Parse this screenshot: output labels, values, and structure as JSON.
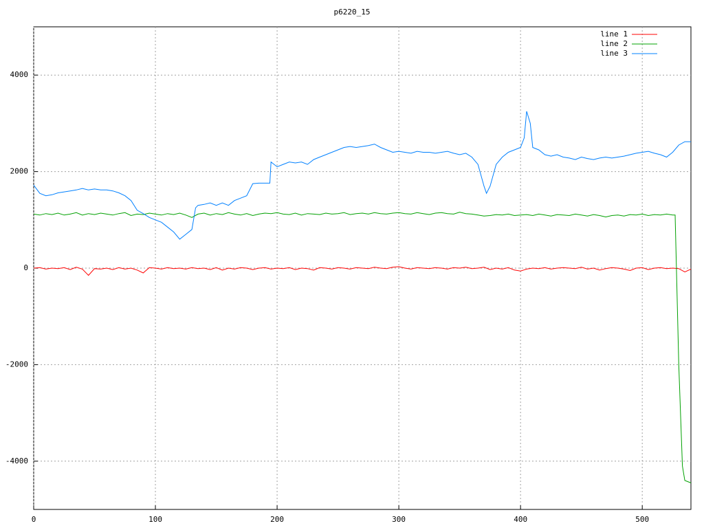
{
  "chart_data": {
    "type": "line",
    "title": "p6220_15",
    "xlim": [
      0,
      540
    ],
    "ylim": [
      -5000,
      5000
    ],
    "xticks": [
      0,
      100,
      200,
      300,
      400,
      500
    ],
    "yticks": [
      -4000,
      -2000,
      0,
      2000,
      4000
    ],
    "grid": true,
    "legend": "upper right",
    "series": [
      {
        "name": "line 1",
        "color": "#ff0000",
        "x": [
          0,
          5,
          10,
          15,
          20,
          25,
          30,
          35,
          40,
          45,
          50,
          55,
          60,
          65,
          70,
          75,
          80,
          85,
          90,
          95,
          100,
          105,
          110,
          115,
          120,
          125,
          130,
          135,
          140,
          145,
          150,
          155,
          160,
          165,
          170,
          175,
          180,
          185,
          190,
          195,
          200,
          205,
          210,
          215,
          220,
          225,
          230,
          235,
          240,
          245,
          250,
          255,
          260,
          265,
          270,
          275,
          280,
          285,
          290,
          295,
          300,
          305,
          310,
          315,
          320,
          325,
          330,
          335,
          340,
          345,
          350,
          355,
          360,
          365,
          370,
          375,
          380,
          385,
          390,
          395,
          400,
          405,
          410,
          415,
          420,
          425,
          430,
          435,
          440,
          445,
          450,
          455,
          460,
          465,
          470,
          475,
          480,
          485,
          490,
          495,
          500,
          505,
          510,
          515,
          520,
          525,
          530,
          535,
          540
        ],
        "values": [
          0,
          10,
          -20,
          0,
          -10,
          10,
          -30,
          20,
          -20,
          -150,
          -10,
          -20,
          0,
          -30,
          10,
          -20,
          0,
          -40,
          -100,
          10,
          0,
          -20,
          10,
          -10,
          0,
          -20,
          10,
          -10,
          0,
          -30,
          10,
          -40,
          0,
          -20,
          10,
          0,
          -30,
          0,
          10,
          -20,
          0,
          -10,
          10,
          -30,
          0,
          -10,
          -40,
          10,
          0,
          -20,
          10,
          0,
          -20,
          10,
          0,
          -10,
          20,
          0,
          -10,
          20,
          30,
          0,
          -20,
          10,
          0,
          -10,
          10,
          0,
          -20,
          10,
          0,
          20,
          -10,
          0,
          20,
          -30,
          0,
          -20,
          10,
          -40,
          -60,
          -20,
          0,
          -10,
          10,
          -20,
          0,
          10,
          0,
          -10,
          20,
          -20,
          0,
          -40,
          -10,
          10,
          0,
          -20,
          -50,
          0,
          10,
          -30,
          0,
          10,
          -10,
          0,
          -10,
          -80,
          -20
        ]
      },
      {
        "name": "line 2",
        "color": "#00a000",
        "x": [
          0,
          5,
          10,
          15,
          20,
          25,
          30,
          35,
          40,
          45,
          50,
          55,
          60,
          65,
          70,
          75,
          80,
          85,
          90,
          95,
          100,
          105,
          110,
          115,
          120,
          125,
          130,
          135,
          140,
          145,
          150,
          155,
          160,
          165,
          170,
          175,
          180,
          185,
          190,
          195,
          200,
          205,
          210,
          215,
          220,
          225,
          230,
          235,
          240,
          245,
          250,
          255,
          260,
          265,
          270,
          275,
          280,
          285,
          290,
          295,
          300,
          305,
          310,
          315,
          320,
          325,
          330,
          335,
          340,
          345,
          350,
          355,
          360,
          365,
          370,
          375,
          380,
          385,
          390,
          395,
          400,
          405,
          410,
          415,
          420,
          425,
          430,
          435,
          440,
          445,
          450,
          455,
          460,
          465,
          470,
          475,
          480,
          485,
          490,
          495,
          500,
          505,
          510,
          515,
          520,
          525,
          527,
          530,
          533,
          535,
          540
        ],
        "values": [
          1120,
          1100,
          1130,
          1110,
          1140,
          1100,
          1120,
          1150,
          1100,
          1130,
          1110,
          1140,
          1120,
          1100,
          1130,
          1150,
          1090,
          1120,
          1110,
          1140,
          1120,
          1100,
          1130,
          1110,
          1140,
          1100,
          1050,
          1120,
          1140,
          1100,
          1130,
          1110,
          1150,
          1120,
          1100,
          1130,
          1090,
          1120,
          1140,
          1130,
          1150,
          1120,
          1110,
          1140,
          1100,
          1130,
          1120,
          1110,
          1140,
          1120,
          1130,
          1150,
          1110,
          1130,
          1140,
          1120,
          1150,
          1130,
          1120,
          1140,
          1150,
          1130,
          1120,
          1150,
          1130,
          1110,
          1140,
          1150,
          1130,
          1120,
          1160,
          1130,
          1120,
          1100,
          1080,
          1090,
          1110,
          1100,
          1120,
          1090,
          1100,
          1110,
          1090,
          1120,
          1100,
          1080,
          1110,
          1100,
          1090,
          1120,
          1100,
          1080,
          1110,
          1090,
          1060,
          1090,
          1100,
          1080,
          1110,
          1100,
          1120,
          1090,
          1110,
          1100,
          1120,
          1100,
          1100,
          -2000,
          -4100,
          -4400,
          -4450
        ]
      },
      {
        "name": "line 3",
        "color": "#0080ff",
        "x": [
          0,
          5,
          10,
          15,
          20,
          25,
          30,
          35,
          40,
          45,
          50,
          55,
          60,
          65,
          70,
          75,
          80,
          85,
          90,
          95,
          100,
          105,
          110,
          115,
          120,
          125,
          130,
          133,
          135,
          140,
          145,
          150,
          155,
          160,
          165,
          170,
          175,
          180,
          185,
          190,
          194,
          195,
          200,
          205,
          210,
          215,
          220,
          225,
          230,
          235,
          240,
          245,
          250,
          255,
          260,
          265,
          270,
          275,
          280,
          285,
          290,
          295,
          300,
          305,
          310,
          315,
          320,
          325,
          330,
          335,
          340,
          345,
          350,
          355,
          360,
          365,
          370,
          372,
          375,
          380,
          385,
          390,
          395,
          400,
          403,
          405,
          408,
          410,
          415,
          420,
          425,
          430,
          435,
          440,
          445,
          450,
          455,
          460,
          465,
          470,
          475,
          480,
          485,
          490,
          495,
          500,
          505,
          510,
          515,
          520,
          525,
          530,
          535,
          540
        ],
        "values": [
          1720,
          1550,
          1500,
          1520,
          1560,
          1580,
          1600,
          1620,
          1650,
          1620,
          1640,
          1620,
          1620,
          1600,
          1560,
          1500,
          1400,
          1200,
          1130,
          1050,
          1000,
          950,
          850,
          750,
          600,
          700,
          800,
          1250,
          1300,
          1320,
          1350,
          1300,
          1350,
          1300,
          1400,
          1450,
          1500,
          1750,
          1760,
          1760,
          1760,
          2200,
          2100,
          2150,
          2200,
          2180,
          2200,
          2150,
          2250,
          2300,
          2350,
          2400,
          2450,
          2500,
          2520,
          2500,
          2520,
          2540,
          2570,
          2500,
          2450,
          2400,
          2420,
          2400,
          2380,
          2420,
          2400,
          2400,
          2380,
          2400,
          2420,
          2380,
          2350,
          2380,
          2300,
          2150,
          1700,
          1550,
          1700,
          2150,
          2300,
          2400,
          2450,
          2500,
          2700,
          3250,
          3000,
          2500,
          2450,
          2350,
          2320,
          2350,
          2300,
          2280,
          2250,
          2300,
          2270,
          2250,
          2280,
          2300,
          2280,
          2300,
          2320,
          2350,
          2380,
          2400,
          2420,
          2380,
          2350,
          2300,
          2400,
          2550,
          2620,
          2620
        ]
      }
    ]
  }
}
